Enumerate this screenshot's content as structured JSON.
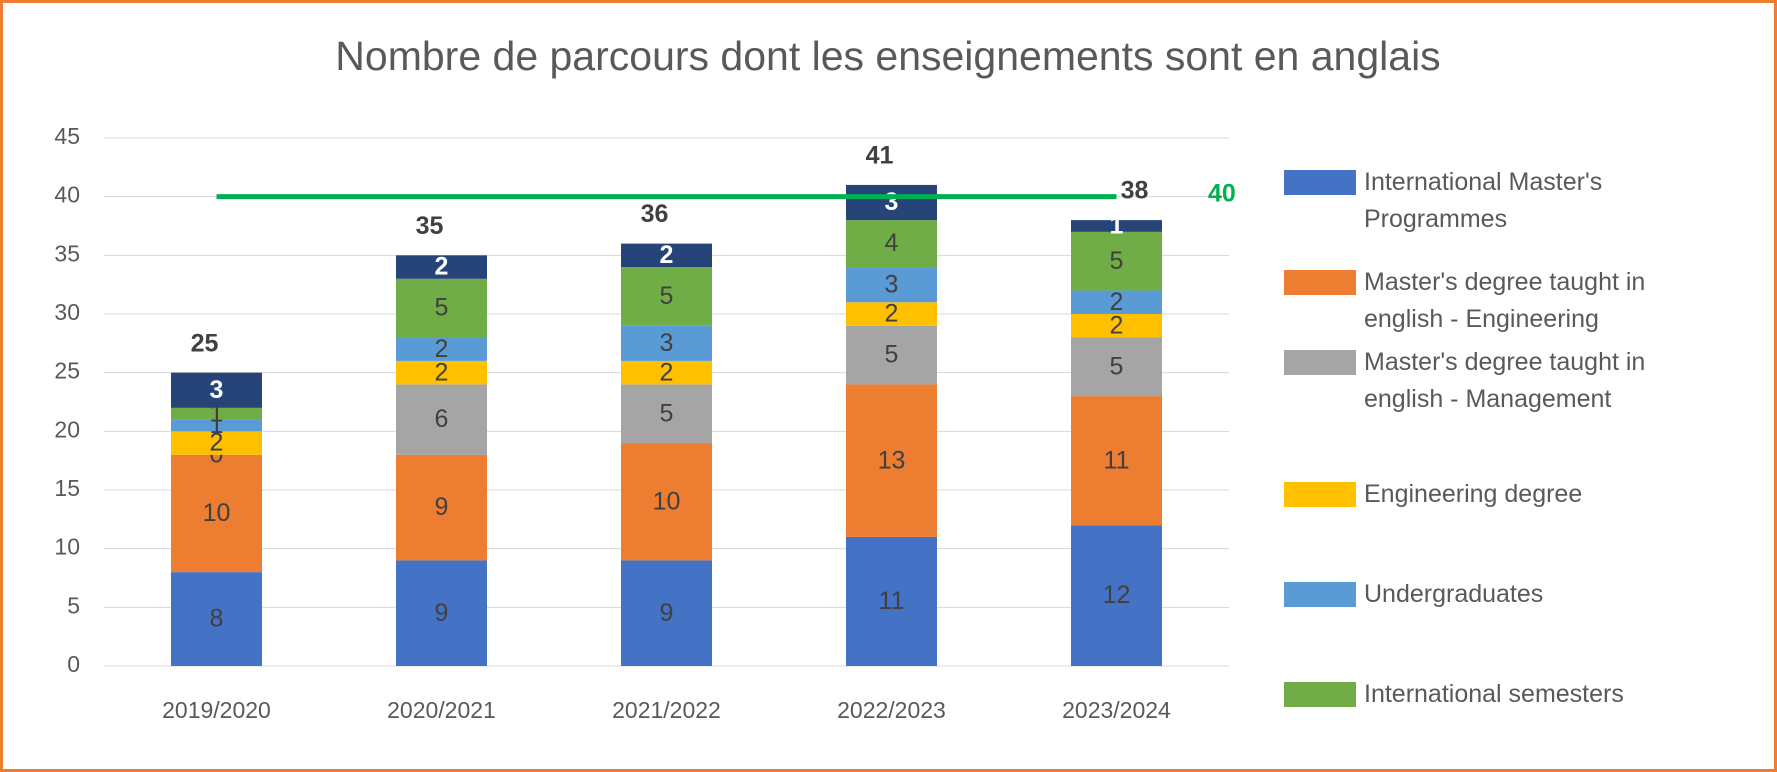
{
  "chart_data": {
    "type": "bar",
    "stacked": true,
    "title": "Nombre de parcours dont les enseignements sont en anglais",
    "categories": [
      "2019/2020",
      "2020/2021",
      "2021/2022",
      "2022/2023",
      "2023/2024"
    ],
    "series": [
      {
        "name": "International Master's Programmes",
        "color": "#4472c4",
        "values": [
          8,
          9,
          9,
          11,
          12
        ]
      },
      {
        "name": "Master's degree taught in english - Engineering",
        "color": "#ed7d31",
        "values": [
          10,
          9,
          10,
          13,
          11
        ]
      },
      {
        "name": "Master's degree taught in english - Management",
        "color": "#a5a5a5",
        "values": [
          0,
          6,
          5,
          5,
          5
        ]
      },
      {
        "name": "Engineering degree",
        "color": "#ffc000",
        "values": [
          2,
          2,
          2,
          2,
          2
        ]
      },
      {
        "name": "Undergraduates",
        "color": "#5b9bd5",
        "values": [
          1,
          2,
          3,
          3,
          2
        ]
      },
      {
        "name": "International semesters",
        "color": "#70ad47",
        "values": [
          1,
          5,
          5,
          4,
          5
        ]
      },
      {
        "color": "#264478",
        "values": [
          3,
          2,
          2,
          3,
          1
        ]
      }
    ],
    "totals": [
      25,
      35,
      36,
      41,
      38
    ],
    "target": 40,
    "target_color": "#00b050",
    "ylim": [
      0,
      45
    ],
    "yticks": [
      0,
      5,
      10,
      15,
      20,
      25,
      30,
      35,
      40,
      45
    ],
    "grid": true,
    "legend": "right"
  }
}
